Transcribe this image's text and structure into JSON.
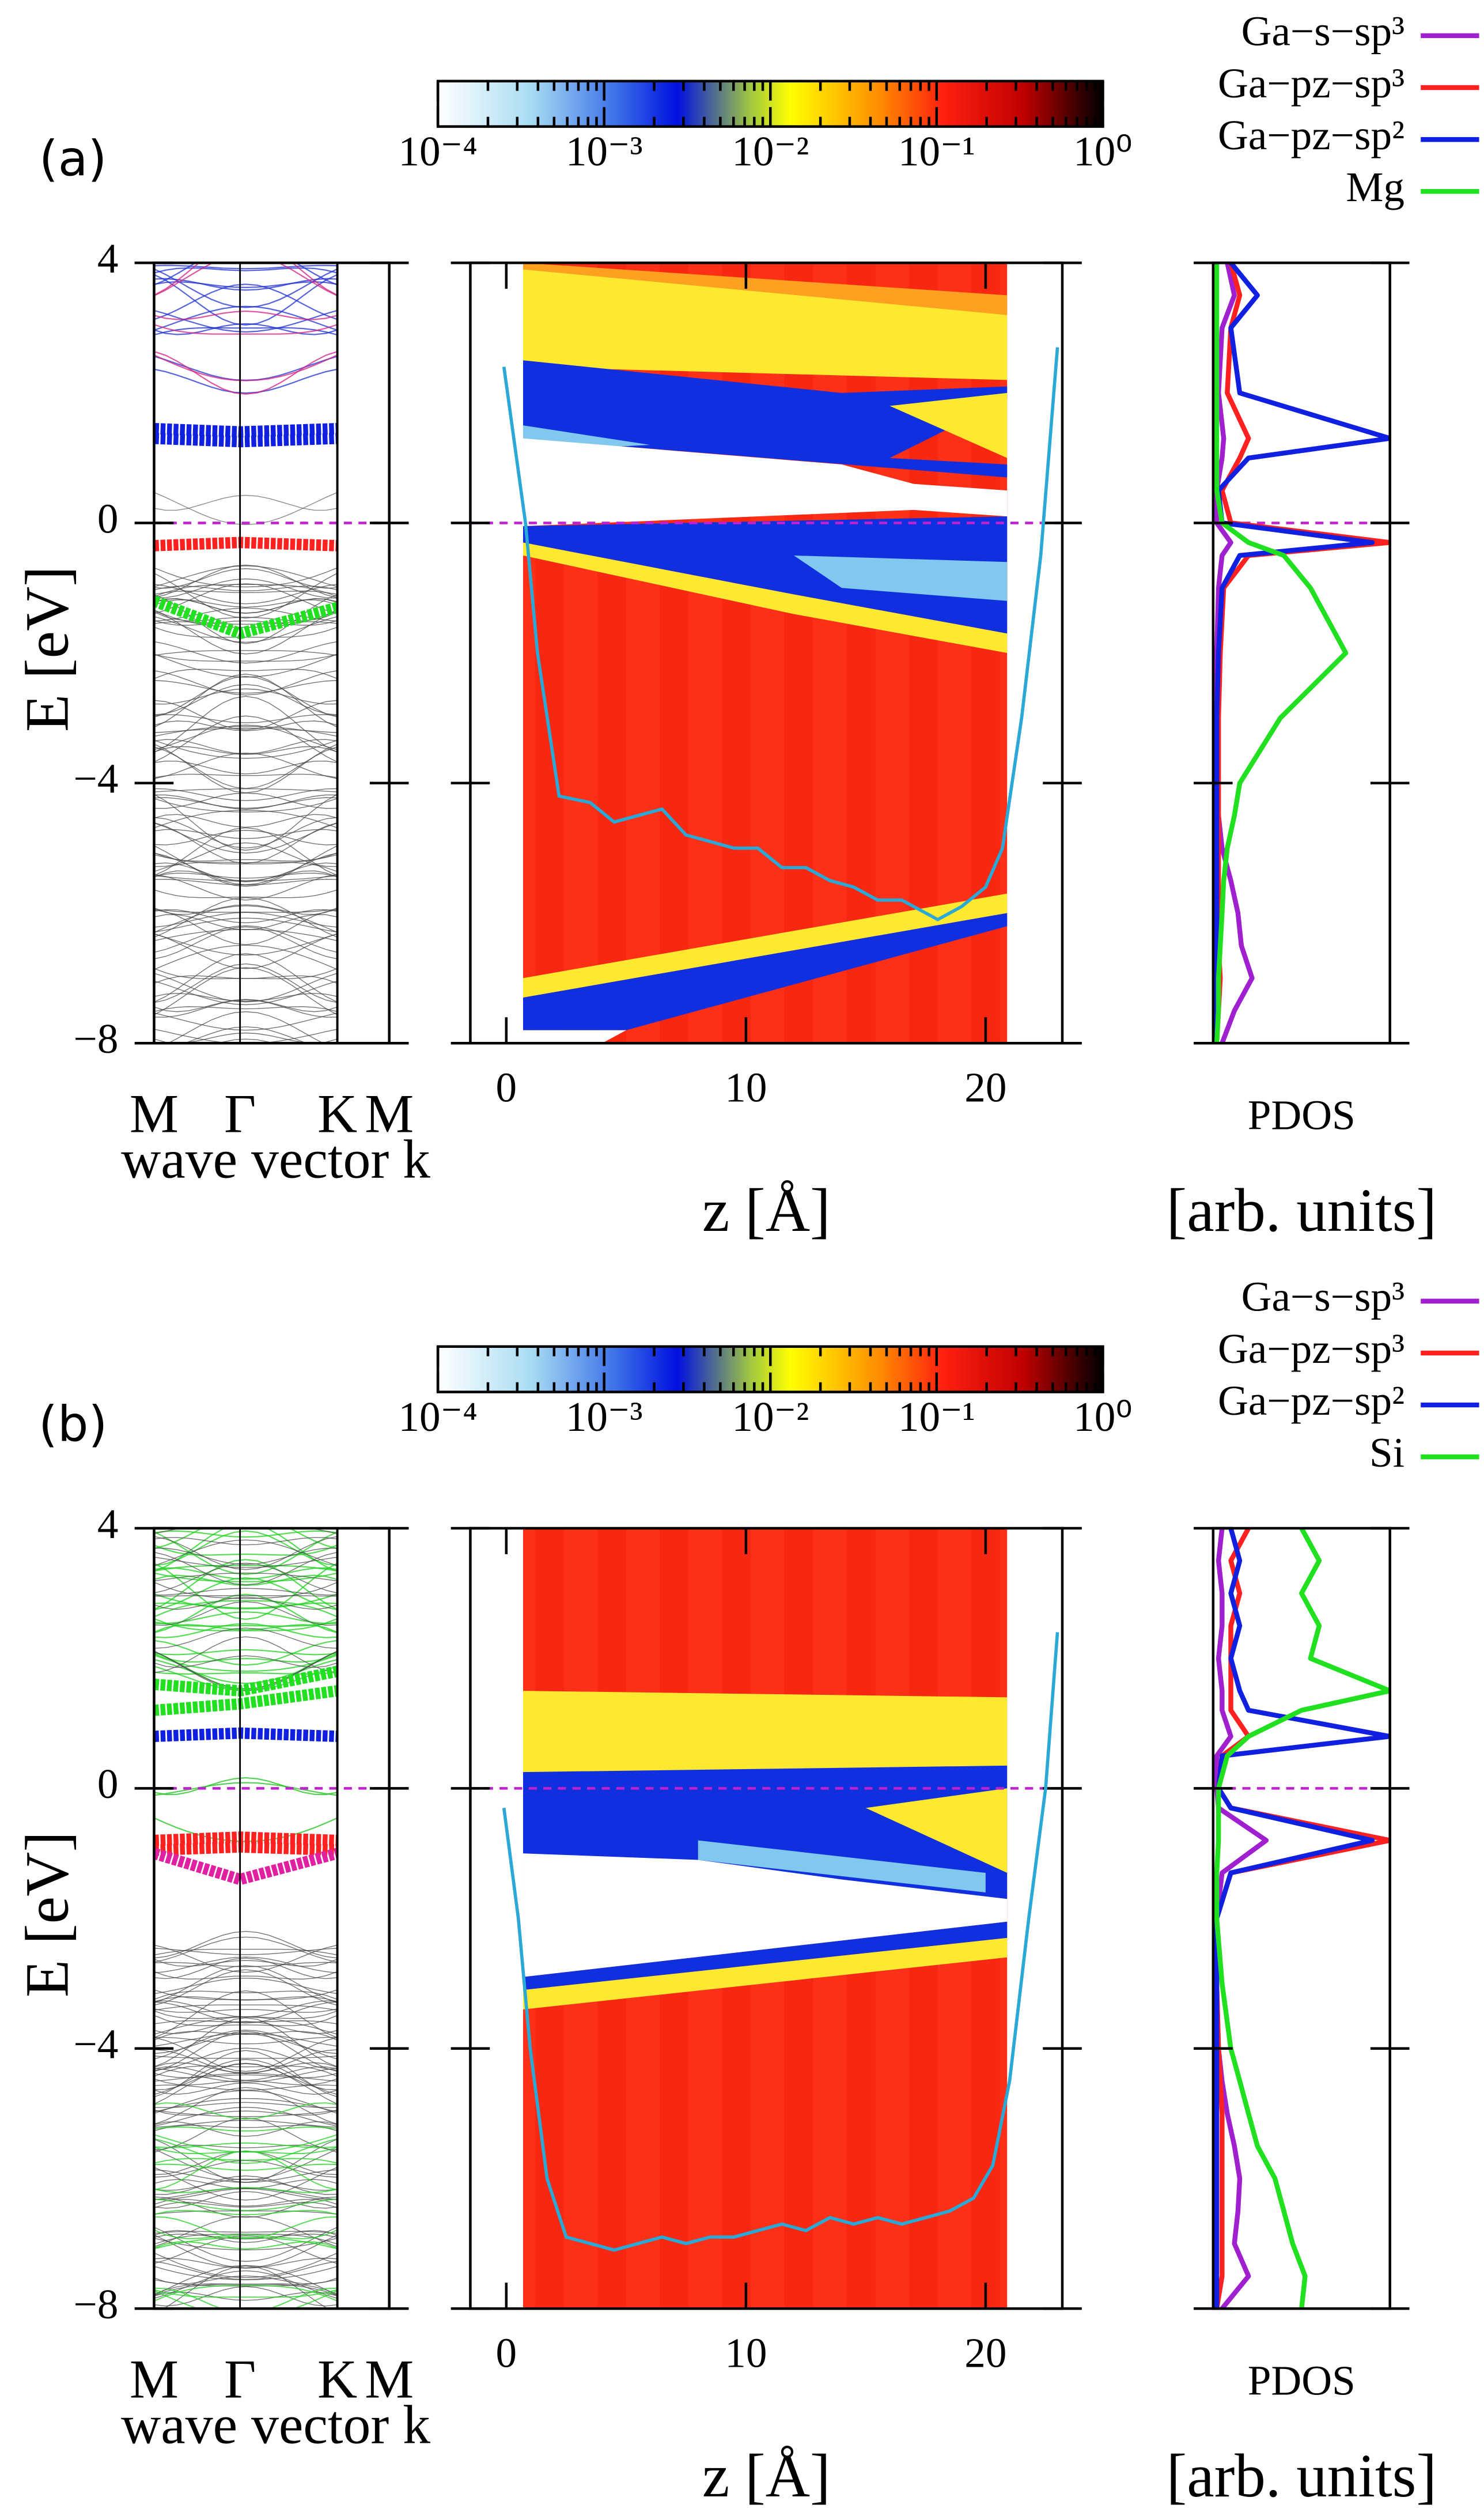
{
  "chart_data": [
    {
      "type": "band",
      "panel_label": "(a)",
      "ylabel": "E [eV]",
      "xlabel": "wave vector k",
      "categories": [
        "M",
        "Γ",
        "K",
        "M"
      ],
      "ylim": [
        -8,
        4
      ],
      "yticks": [
        {
          "value": -8,
          "label": "−8"
        },
        {
          "value": -4,
          "label": "−4"
        },
        0,
        4
      ],
      "fermi": 0,
      "series": [
        {
          "color": "#1020e0",
          "values": [
            1.3,
            1.25,
            1.3,
            null
          ]
        },
        {
          "color": "#1020e0",
          "values": [
            1.45,
            1.4,
            1.45,
            null
          ]
        },
        {
          "color": "#ff2020",
          "values": [
            -0.35,
            -0.3,
            -0.35,
            null
          ]
        },
        {
          "color": "#20e020",
          "values": [
            -1.2,
            -1.7,
            -1.3,
            null
          ]
        }
      ]
    },
    {
      "type": "heatmap",
      "xlabel": "z [Å]",
      "xlim": [
        -1.5,
        23.2
      ],
      "xticks": [
        0,
        10,
        20
      ],
      "ylim": [
        -8,
        4
      ],
      "yticks": [
        {
          "value": -8,
          "label": "−8"
        },
        {
          "value": -4,
          "label": "−4"
        },
        0,
        4
      ],
      "fermi": 0,
      "colorbar": {
        "scale": "log",
        "lim": [
          0.0001,
          1
        ],
        "ticks": [
          {
            "value": 0.0001,
            "label": "10⁻⁴"
          },
          {
            "value": 0.001,
            "label": "10⁻³"
          },
          {
            "value": 0.01,
            "label": "10⁻²"
          },
          {
            "value": 0.1,
            "label": "10⁻¹"
          },
          {
            "value": 1,
            "label": "10⁰"
          }
        ]
      },
      "potential": {
        "color": "#2aa8d6",
        "x": [
          -0.1,
          0.8,
          1.3,
          2.2,
          3.5,
          4.5,
          5.5,
          6.5,
          7.5,
          8.5,
          9.5,
          10.5,
          11.5,
          12.5,
          13.5,
          14.5,
          15.5,
          16.5,
          17.5,
          18,
          19,
          20,
          20.7,
          21.5,
          22.3,
          23
        ],
        "values": [
          2.4,
          0,
          -2,
          -4.2,
          -4.3,
          -4.6,
          -4.5,
          -4.4,
          -4.8,
          -4.9,
          -5,
          -5.0,
          -5.3,
          -5.3,
          -5.5,
          -5.6,
          -5.8,
          -5.8,
          -6.0,
          -6.1,
          -5.9,
          -5.6,
          -5.0,
          -3,
          -0.5,
          2.7
        ]
      }
    },
    {
      "type": "line",
      "xlabel": "PDOS",
      "units": "[arb. units]",
      "xlim": [
        0,
        1
      ],
      "ylim": [
        -8,
        4
      ],
      "yticks": [
        {
          "value": -8,
          "label": "−8"
        },
        {
          "value": -4,
          "label": "−4"
        },
        0,
        4
      ],
      "fermi": 0,
      "legend": "upper right",
      "energies": [
        -8,
        -7.5,
        -7,
        -6.5,
        -6,
        -5.5,
        -5,
        -4.5,
        -4,
        -3,
        -2,
        -1,
        -0.5,
        -0.3,
        0,
        0.5,
        1,
        1.3,
        2,
        3,
        3.5,
        4
      ],
      "series": [
        {
          "name": "Ga−s−sp³",
          "color": "#a020d0",
          "values": [
            0.05,
            0.12,
            0.22,
            0.16,
            0.14,
            0.1,
            0.05,
            0.03,
            0.02,
            0.02,
            0.02,
            0.03,
            0.05,
            0.1,
            0.02,
            0.02,
            0.05,
            0.06,
            0.03,
            0.05,
            0.12,
            0.08
          ]
        },
        {
          "name": "Ga−pz−sp³",
          "color": "#ff2020",
          "values": [
            0.02,
            0.03,
            0.04,
            0.03,
            0.03,
            0.03,
            0.03,
            0.03,
            0.03,
            0.03,
            0.04,
            0.06,
            0.2,
            1.0,
            0.1,
            0.05,
            0.15,
            0.2,
            0.08,
            0.1,
            0.15,
            0.1
          ]
        },
        {
          "name": "Ga−pz−sp²",
          "color": "#1020e0",
          "values": [
            0.02,
            0.02,
            0.02,
            0.02,
            0.02,
            0.02,
            0.02,
            0.02,
            0.02,
            0.02,
            0.03,
            0.05,
            0.15,
            0.9,
            0.05,
            0.03,
            0.2,
            1.0,
            0.15,
            0.1,
            0.25,
            0.1
          ]
        },
        {
          "name": "Mg",
          "color": "#20e020",
          "values": [
            0.02,
            0.03,
            0.03,
            0.04,
            0.05,
            0.06,
            0.08,
            0.12,
            0.15,
            0.38,
            0.75,
            0.55,
            0.4,
            0.2,
            0.05,
            0.02,
            0.02,
            0.02,
            0.02,
            0.02,
            0.02,
            0.02
          ]
        }
      ]
    },
    {
      "type": "band",
      "panel_label": "(b)",
      "ylabel": "E [eV]",
      "xlabel": "wave vector k",
      "categories": [
        "M",
        "Γ",
        "K",
        "M"
      ],
      "ylim": [
        -8,
        4
      ],
      "yticks": [
        {
          "value": -8,
          "label": "−8"
        },
        {
          "value": -4,
          "label": "−4"
        },
        0,
        4
      ],
      "fermi": 0,
      "series": [
        {
          "color": "#20e020",
          "values": [
            1.2,
            1.3,
            1.5,
            null
          ]
        },
        {
          "color": "#20e020",
          "values": [
            1.6,
            1.5,
            1.8,
            null
          ]
        },
        {
          "color": "#1020e0",
          "values": [
            0.8,
            0.85,
            0.8,
            null
          ]
        },
        {
          "color": "#ff2020",
          "values": [
            -0.8,
            -0.75,
            -0.8,
            null
          ]
        },
        {
          "color": "#ff2020",
          "values": [
            -0.95,
            -0.9,
            -0.95,
            null
          ]
        },
        {
          "color": "#e020a0",
          "values": [
            -1.0,
            -1.4,
            -1.0,
            null
          ]
        }
      ]
    },
    {
      "type": "heatmap",
      "xlabel": "z [Å]",
      "xlim": [
        -1.5,
        23.2
      ],
      "xticks": [
        0,
        10,
        20
      ],
      "ylim": [
        -8,
        4
      ],
      "yticks": [
        {
          "value": -8,
          "label": "−8"
        },
        {
          "value": -4,
          "label": "−4"
        },
        0,
        4
      ],
      "fermi": 0,
      "colorbar": {
        "scale": "log",
        "lim": [
          0.0001,
          1
        ],
        "ticks": [
          {
            "value": 0.0001,
            "label": "10⁻⁴"
          },
          {
            "value": 0.001,
            "label": "10⁻³"
          },
          {
            "value": 0.01,
            "label": "10⁻²"
          },
          {
            "value": 0.1,
            "label": "10⁻¹"
          },
          {
            "value": 1,
            "label": "10⁰"
          }
        ]
      },
      "potential": {
        "color": "#2aa8d6",
        "x": [
          -0.1,
          0.5,
          1,
          1.7,
          2.5,
          3.5,
          4.5,
          5.5,
          6.5,
          7.5,
          8.5,
          9.5,
          10.5,
          11.5,
          12.5,
          13.5,
          14.5,
          15.5,
          16.5,
          17.5,
          18.5,
          19.5,
          20.3,
          21,
          21.8,
          22.5,
          23
        ],
        "values": [
          -0.3,
          -2,
          -4,
          -6,
          -6.9,
          -7,
          -7.1,
          -7,
          -6.9,
          -7,
          -6.9,
          -6.9,
          -6.8,
          -6.7,
          -6.8,
          -6.6,
          -6.7,
          -6.6,
          -6.7,
          -6.6,
          -6.5,
          -6.3,
          -5.8,
          -4.5,
          -2,
          0,
          2.4
        ]
      }
    },
    {
      "type": "line",
      "xlabel": "PDOS",
      "units": "[arb. units]",
      "xlim": [
        0,
        1
      ],
      "ylim": [
        -8,
        4
      ],
      "yticks": [
        {
          "value": -8,
          "label": "−8"
        },
        {
          "value": -4,
          "label": "−4"
        },
        0,
        4
      ],
      "fermi": 0,
      "legend": "upper right",
      "energies": [
        -8,
        -7.5,
        -7,
        -6.5,
        -6,
        -5.5,
        -5,
        -4.5,
        -4,
        -3,
        -2,
        -1.3,
        -0.8,
        -0.3,
        0,
        0.5,
        0.8,
        1.2,
        1.5,
        2,
        2.5,
        3,
        3.5,
        4
      ],
      "series": [
        {
          "name": "Ga−s−sp³",
          "color": "#a020d0",
          "values": [
            0.05,
            0.2,
            0.12,
            0.14,
            0.15,
            0.12,
            0.08,
            0.05,
            0.03,
            0.02,
            0.02,
            0.05,
            0.3,
            0.03,
            0.02,
            0.02,
            0.1,
            0.05,
            0.05,
            0.03,
            0.05,
            0.05,
            0.03,
            0.05
          ]
        },
        {
          "name": "Ga−pz−sp³",
          "color": "#ff2020",
          "values": [
            0.02,
            0.05,
            0.05,
            0.05,
            0.05,
            0.05,
            0.05,
            0.04,
            0.03,
            0.02,
            0.02,
            0.1,
            1.0,
            0.1,
            0.03,
            0.05,
            0.2,
            0.1,
            0.1,
            0.1,
            0.1,
            0.15,
            0.1,
            0.2
          ]
        },
        {
          "name": "Ga−pz−sp²",
          "color": "#1020e0",
          "values": [
            0.02,
            0.02,
            0.02,
            0.02,
            0.02,
            0.02,
            0.02,
            0.02,
            0.02,
            0.02,
            0.02,
            0.1,
            0.9,
            0.1,
            0.03,
            0.05,
            1.0,
            0.2,
            0.15,
            0.1,
            0.15,
            0.1,
            0.15,
            0.1
          ]
        },
        {
          "name": "Si",
          "color": "#20e020",
          "values": [
            0.5,
            0.52,
            0.45,
            0.4,
            0.35,
            0.25,
            0.2,
            0.15,
            0.1,
            0.05,
            0.02,
            0.02,
            0.03,
            0.03,
            0.03,
            0.08,
            0.2,
            0.5,
            1.0,
            0.55,
            0.6,
            0.5,
            0.6,
            0.5
          ]
        }
      ]
    }
  ]
}
